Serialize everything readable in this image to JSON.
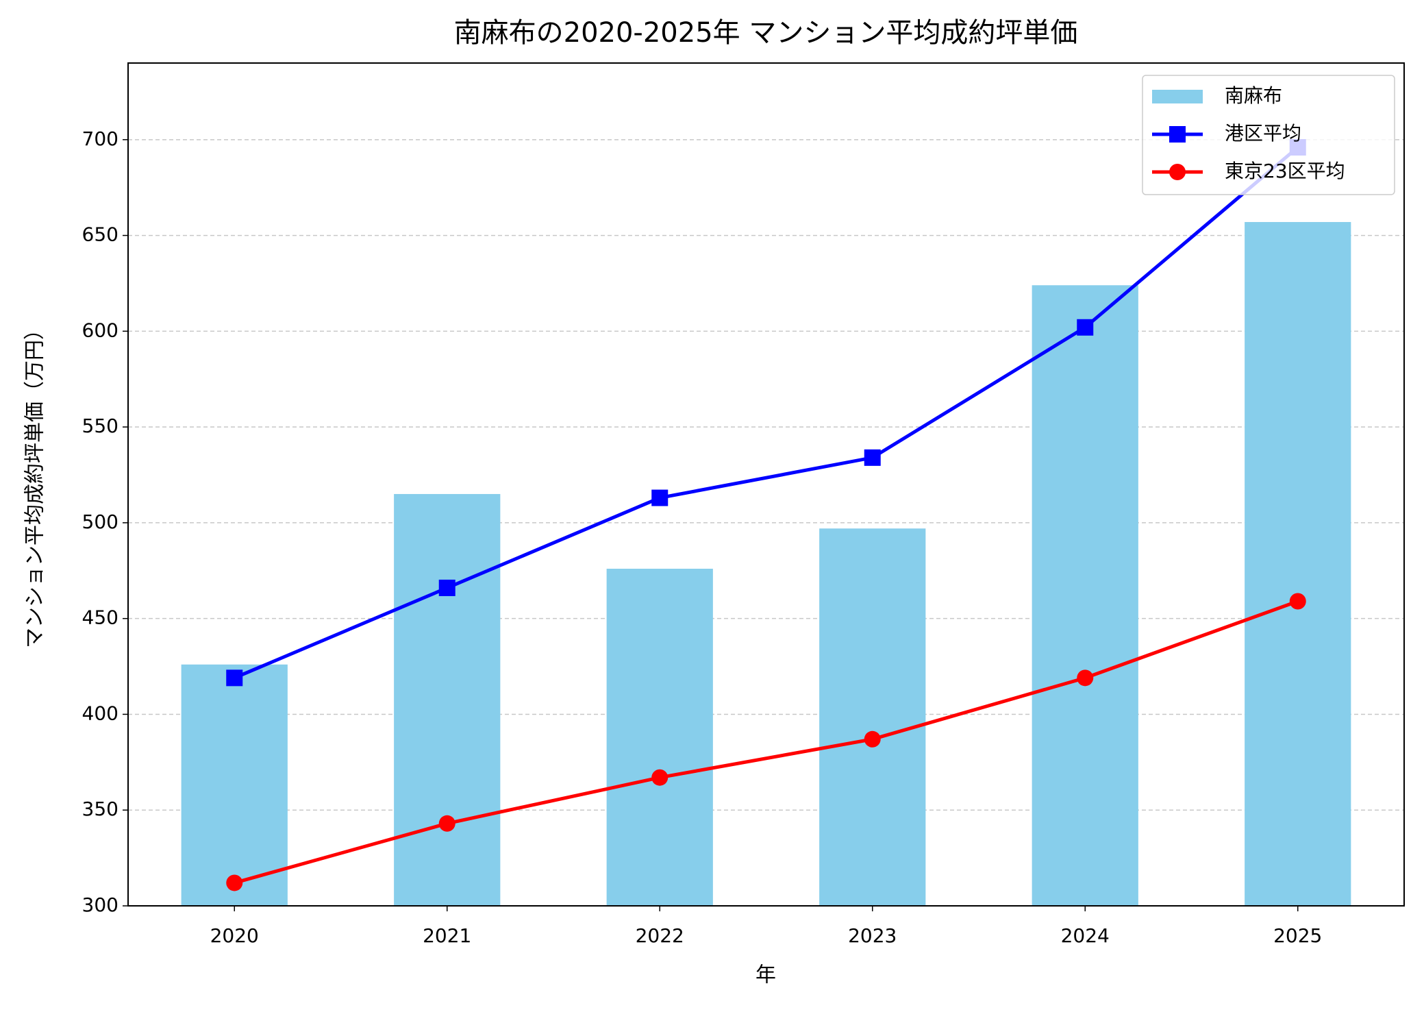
{
  "chart_data": {
    "type": "bar",
    "title": "南麻布の2020-2025年 マンション平均成約坪単価",
    "x_label": "年",
    "y_label": "マンション平均成約坪単価（万円）",
    "categories": [
      "2020",
      "2021",
      "2022",
      "2023",
      "2024",
      "2025"
    ],
    "series": [
      {
        "name": "南麻布",
        "type": "bar",
        "color": "#87ceeb",
        "values": [
          426,
          515,
          476,
          497,
          624,
          657
        ]
      },
      {
        "name": "港区平均",
        "type": "line",
        "marker": "square",
        "color": "#0000ff",
        "values": [
          419,
          466,
          513,
          534,
          602,
          696
        ]
      },
      {
        "name": "東京23区平均",
        "type": "line",
        "marker": "circle",
        "color": "#ff0000",
        "values": [
          312,
          343,
          367,
          387,
          419,
          459
        ]
      }
    ],
    "ylim": [
      300,
      740
    ],
    "yticks": [
      300,
      350,
      400,
      450,
      500,
      550,
      600,
      650,
      700
    ],
    "grid": true,
    "legend": "upper right"
  }
}
